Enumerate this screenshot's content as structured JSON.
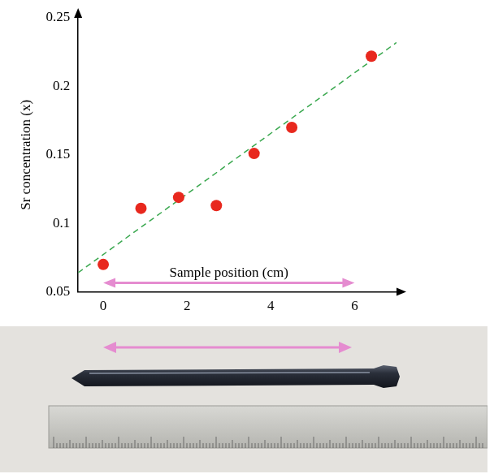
{
  "chart_data": {
    "type": "scatter",
    "x_label": "Sample position (cm)",
    "y_label": "Sr concentration (x)",
    "xlim": [
      -0.6,
      7.0
    ],
    "xticks": [
      0,
      2,
      4,
      6
    ],
    "ylim": [
      0.05,
      0.25
    ],
    "yticks": [
      0.05,
      0.1,
      0.15,
      0.2,
      0.25
    ],
    "grid": false,
    "series": [
      {
        "type": "scatter",
        "color": "#e8281e",
        "marker": "circle",
        "x": [
          0,
          0.9,
          1.8,
          2.7,
          3.6,
          4.5,
          6.4
        ],
        "values": [
          0.07,
          0.111,
          0.119,
          0.113,
          0.151,
          0.17,
          0.222
        ]
      },
      {
        "type": "line",
        "color": "#3aa84f",
        "line_style": "dashed",
        "x": [
          -0.6,
          7.0
        ],
        "values": [
          0.064,
          0.232
        ]
      }
    ]
  }
}
